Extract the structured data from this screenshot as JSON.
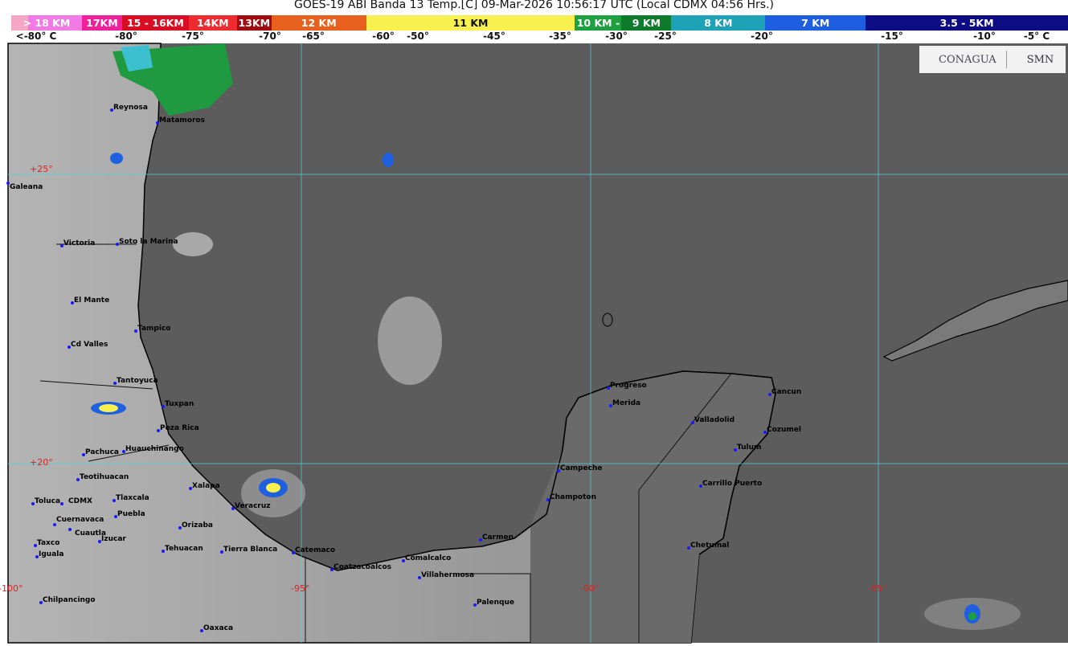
{
  "header": {
    "title": "GOES-19 ABI Banda 13 Temp.[C] 09-Mar-2026 10:56:17 UTC (Local CDMX  04:56 Hrs.)"
  },
  "legend": {
    "segments": [
      {
        "label": "> 18 KM",
        "color": "#f27ae6"
      },
      {
        "label": "17KM",
        "color": "#f0209a"
      },
      {
        "label": "15 - 16KM",
        "color": "#d80c22"
      },
      {
        "label": "14KM",
        "color": "#ee2c30"
      },
      {
        "label": "13KM",
        "color": "#a00a10"
      },
      {
        "label": "12 KM",
        "color": "#e8601e"
      },
      {
        "label": "11 KM",
        "color": "#f7f04e"
      },
      {
        "label": "10 KM -",
        "color": "#1fa040"
      },
      {
        "label": "9 KM",
        "color": "#0e7a2c"
      },
      {
        "label": "8 KM",
        "color": "#1ea2b8"
      },
      {
        "label": "7 KM",
        "color": "#1e5ee0"
      },
      {
        "label": "3.5 - 5KM",
        "color": "#0c0c84"
      }
    ],
    "temps": [
      "<-80° C",
      "-80°",
      "-75°",
      "-70°",
      "-65°",
      "-60°",
      "-50°",
      "-45°",
      "-35°",
      "-30°",
      "-25°",
      "-20°",
      "-15°",
      "-10°",
      "-5°  C"
    ]
  },
  "logos": {
    "conagua": "CONAGUA",
    "smn": "SMN"
  },
  "grid": {
    "lat": [
      "+25°",
      "+20°"
    ],
    "lon": [
      "-100°",
      "-95°",
      "-90°",
      "-85°"
    ]
  },
  "cities": [
    "Reynosa",
    "Matamoros",
    "Galeana",
    "Victoria",
    "Soto la Marina",
    "El Mante",
    "Tampico",
    "Cd Valles",
    "Tantoyuca",
    "Tuxpan",
    "Poza Rica",
    "Huauchinango",
    "Pachuca",
    "Teotihuacan",
    "Toluca",
    "CDMX",
    "Tlaxcala",
    "Puebla",
    "Cuernavaca",
    "Cuautla",
    "Taxco",
    "Iguala",
    "Izucar",
    "Xalapa",
    "Veracruz",
    "Orizaba",
    "Tehuacan",
    "Tierra Blanca",
    "Catemaco",
    "Coatzacoalcos",
    "Comalcalco",
    "Villahermosa",
    "Carmen",
    "Palenque",
    "Campeche",
    "Champoton",
    "Progreso",
    "Merida",
    "Valladolid",
    "Cancun",
    "Cozumel",
    "Tulum",
    "Carrillo Puerto",
    "Chetumal",
    "Chilpancingo",
    "Oaxaca"
  ]
}
